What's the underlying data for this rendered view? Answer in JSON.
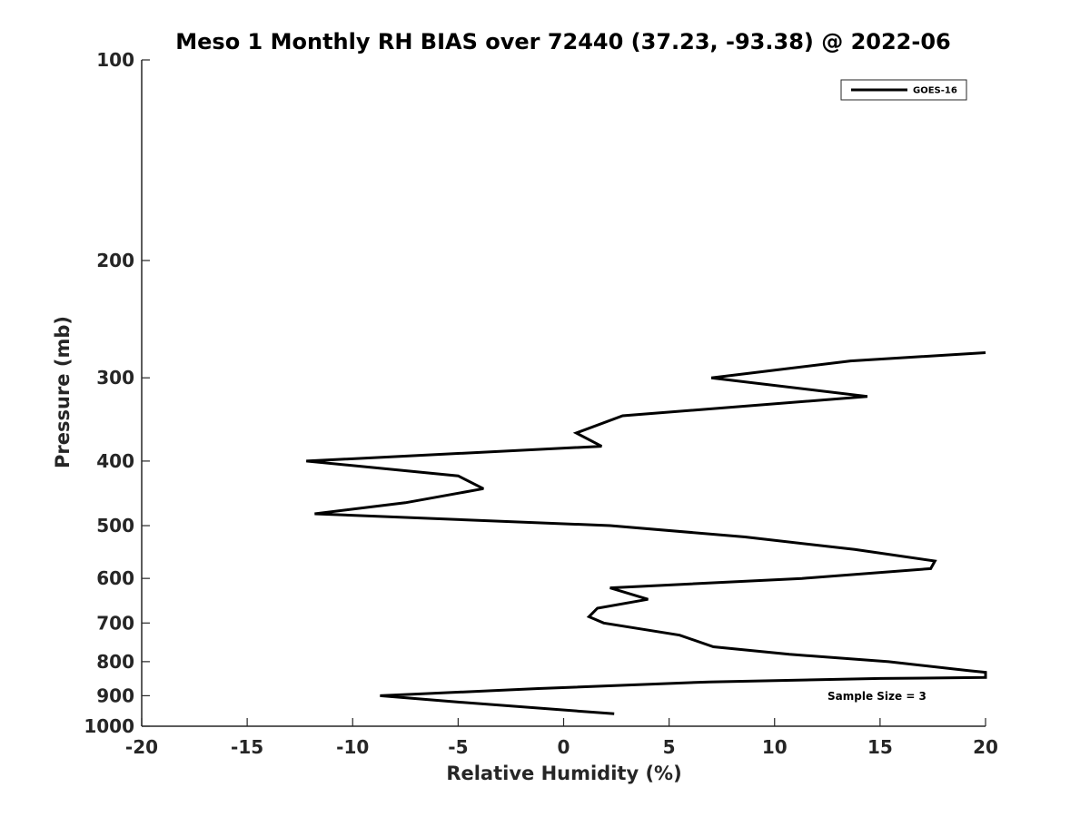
{
  "chart_data": {
    "type": "line",
    "title": "Meso 1 Monthly RH BIAS over 72440 (37.23, -93.38) @ 2022-06",
    "xlabel": "Relative Humidity (%)",
    "ylabel": "Pressure (mb)",
    "xlim": [
      -20,
      20
    ],
    "ylim": [
      100,
      1000
    ],
    "y_scale": "log",
    "y_reversed": true,
    "x_ticks": [
      -20,
      -15,
      -10,
      -5,
      0,
      5,
      10,
      15,
      20
    ],
    "y_ticks": [
      100,
      200,
      300,
      400,
      500,
      600,
      700,
      800,
      900,
      1000
    ],
    "grid": false,
    "legend_placement": "top-right",
    "series": [
      {
        "name": "GOES-16",
        "color": "#000000",
        "points": [
          {
            "x": 20.0,
            "y": 275
          },
          {
            "x": 13.6,
            "y": 283
          },
          {
            "x": 7.0,
            "y": 300
          },
          {
            "x": 14.4,
            "y": 320
          },
          {
            "x": 2.8,
            "y": 342
          },
          {
            "x": 0.6,
            "y": 363
          },
          {
            "x": 1.8,
            "y": 380
          },
          {
            "x": -12.2,
            "y": 400
          },
          {
            "x": -5.0,
            "y": 421
          },
          {
            "x": -3.8,
            "y": 440
          },
          {
            "x": -7.5,
            "y": 462
          },
          {
            "x": -11.8,
            "y": 480
          },
          {
            "x": 2.2,
            "y": 500
          },
          {
            "x": 8.6,
            "y": 520
          },
          {
            "x": 13.8,
            "y": 543
          },
          {
            "x": 17.6,
            "y": 565
          },
          {
            "x": 17.4,
            "y": 580
          },
          {
            "x": 11.3,
            "y": 600
          },
          {
            "x": 2.2,
            "y": 620
          },
          {
            "x": 4.0,
            "y": 645
          },
          {
            "x": 1.6,
            "y": 665
          },
          {
            "x": 1.2,
            "y": 685
          },
          {
            "x": 1.9,
            "y": 700
          },
          {
            "x": 5.5,
            "y": 730
          },
          {
            "x": 7.1,
            "y": 760
          },
          {
            "x": 10.7,
            "y": 780
          },
          {
            "x": 15.4,
            "y": 800
          },
          {
            "x": 19.2,
            "y": 825
          },
          {
            "x": 20.0,
            "y": 830
          },
          {
            "x": 20.0,
            "y": 845
          },
          {
            "x": 15.0,
            "y": 848
          },
          {
            "x": 6.9,
            "y": 858
          },
          {
            "x": -1.2,
            "y": 878
          },
          {
            "x": -8.7,
            "y": 900
          },
          {
            "x": -5.0,
            "y": 920
          },
          {
            "x": 2.4,
            "y": 958
          }
        ]
      }
    ],
    "annotations": [
      "Sample Size = 3"
    ]
  }
}
